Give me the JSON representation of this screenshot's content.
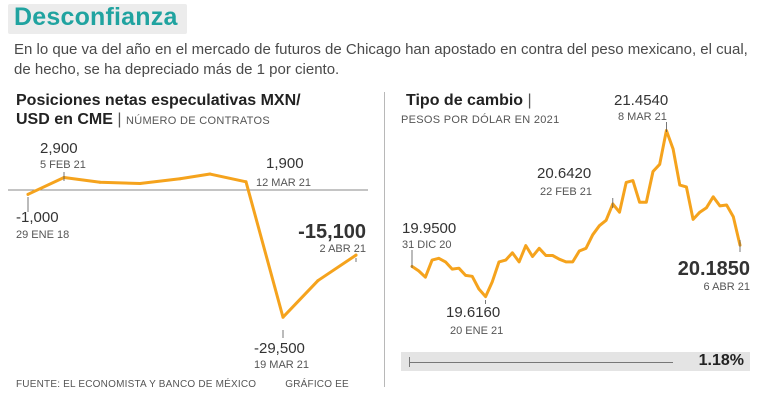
{
  "title": "Desconfianza",
  "subtitle": "En lo que va del año en el mercado de futuros de Chicago han apostado en contra del peso mexicano, el cual, de hecho, se ha depreciado más de 1 por ciento.",
  "left_chart": {
    "title_line1": "Posiciones netas especulativas MXN/",
    "title_line2": "USD en CME",
    "unit": "NÚMERO DE CONTRATOS"
  },
  "right_chart": {
    "title": "Tipo de cambio",
    "unit": "PESOS POR DÓLAR EN 2021",
    "change_pct": "1.18%"
  },
  "footer": {
    "source": "FUENTE: EL ECONOMISTA Y BANCO DE MÉXICO",
    "credit": "GRÁFICO EE"
  },
  "colors": {
    "accent": "#20a3a0",
    "line": "#f5a31d",
    "text": "#333333"
  },
  "chart_data": [
    {
      "type": "line",
      "title": "Posiciones netas especulativas MXN/USD en CME",
      "ylabel": "NÚMERO DE CONTRATOS",
      "ylim": [
        -32000,
        6000
      ],
      "baseline": 0,
      "points": [
        {
          "x": "29 ENE 18",
          "y": -1000
        },
        {
          "x": "5 FEB 21",
          "y": 2900
        },
        {
          "x": "",
          "y": 1800
        },
        {
          "x": "",
          "y": 1500
        },
        {
          "x": "",
          "y": 2600
        },
        {
          "x": "",
          "y": 3700
        },
        {
          "x": "12 MAR 21",
          "y": 1900
        },
        {
          "x": "19 MAR 21",
          "y": -29500
        },
        {
          "x": "",
          "y": -21000
        },
        {
          "x": "2 ABR 21",
          "y": -15100
        }
      ],
      "annotations": [
        {
          "value": "-1,000",
          "date": "29 ENE 18",
          "point": 0
        },
        {
          "value": "2,900",
          "date": "5 FEB 21",
          "point": 1
        },
        {
          "value": "1,900",
          "date": "12 MAR 21",
          "point": 6
        },
        {
          "value": "-29,500",
          "date": "19 MAR 21",
          "point": 7
        },
        {
          "value": "-15,100",
          "date": "2 ABR 21",
          "point": 9
        }
      ]
    },
    {
      "type": "line",
      "title": "Tipo de cambio",
      "ylabel": "PESOS POR DÓLAR EN 2021",
      "ylim": [
        19.4,
        21.6
      ],
      "values": [
        19.95,
        19.9,
        19.83,
        20.02,
        20.04,
        20.0,
        19.92,
        19.93,
        19.85,
        19.84,
        19.7,
        19.616,
        19.78,
        20.0,
        20.02,
        20.1,
        20.0,
        20.18,
        20.06,
        20.15,
        20.07,
        20.07,
        20.03,
        20.0,
        20.0,
        20.12,
        20.15,
        20.3,
        20.4,
        20.46,
        20.642,
        20.55,
        20.88,
        20.9,
        20.66,
        20.66,
        21.0,
        21.08,
        21.454,
        21.25,
        20.85,
        20.83,
        20.47,
        20.55,
        20.6,
        20.72,
        20.62,
        20.63,
        20.5,
        20.185
      ],
      "annotations": [
        {
          "value": "19.9500",
          "date": "31 DIC 20",
          "point": 0
        },
        {
          "value": "19.6160",
          "date": "20 ENE 21",
          "point": 11
        },
        {
          "value": "20.6420",
          "date": "22 FEB 21",
          "point": 30
        },
        {
          "value": "21.4540",
          "date": "8 MAR 21",
          "point": 38
        },
        {
          "value": "20.1850",
          "date": "6 ABR 21",
          "point": 49
        }
      ]
    }
  ]
}
